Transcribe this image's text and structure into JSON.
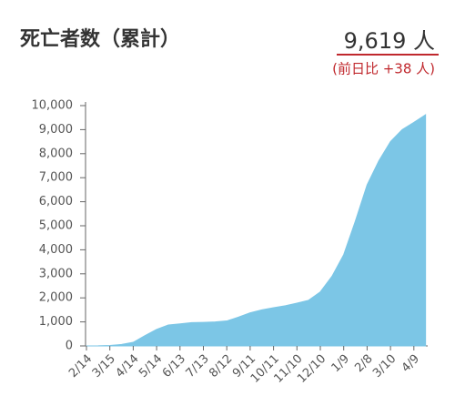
{
  "header": {
    "title": "死亡者数（累計）",
    "total": "9,619 人",
    "change": "(前日比 +38 人)"
  },
  "chart_data": {
    "type": "area",
    "categories": [
      "2/14",
      null,
      "3/15",
      null,
      "4/14",
      null,
      "5/14",
      null,
      "6/13",
      null,
      "7/13",
      null,
      "8/12",
      null,
      "9/11",
      null,
      "10/11",
      null,
      "11/10",
      null,
      "12/10",
      null,
      "1/9",
      null,
      "2/8",
      null,
      "3/10",
      null,
      "4/9",
      null
    ],
    "values": [
      1,
      5,
      20,
      60,
      150,
      430,
      690,
      870,
      920,
      970,
      980,
      1000,
      1040,
      1200,
      1380,
      1500,
      1590,
      1670,
      1780,
      1900,
      2250,
      2900,
      3800,
      5200,
      6700,
      7700,
      8500,
      9000,
      9300,
      9619
    ],
    "color": "#7cc6e6",
    "ylim": [
      0,
      10000
    ],
    "yticks": [
      0,
      {
        "value": 1000,
        "label": "1,000"
      },
      {
        "value": 2000,
        "label": "2,000"
      },
      {
        "value": 3000,
        "label": "3,000"
      },
      {
        "value": 4000,
        "label": "4,000"
      },
      {
        "value": 5000,
        "label": "5,000"
      },
      {
        "value": 6000,
        "label": "6,000"
      },
      {
        "value": 7000,
        "label": "7,000"
      },
      {
        "value": 8000,
        "label": "8,000"
      },
      {
        "value": 9000,
        "label": "9,000"
      },
      {
        "value": 10000,
        "label": "10,000"
      }
    ]
  }
}
